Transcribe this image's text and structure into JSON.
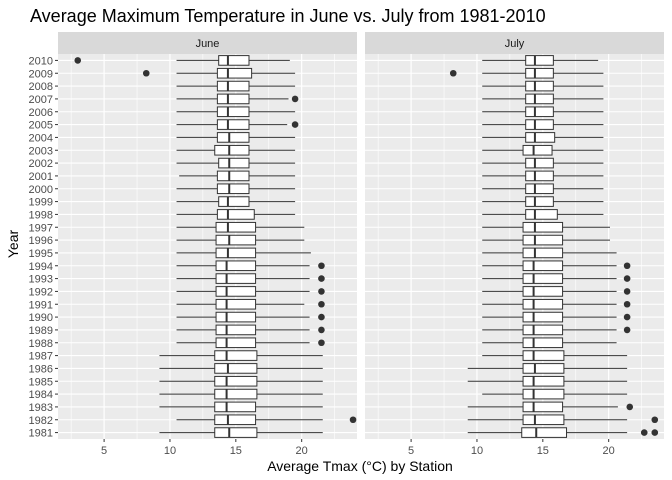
{
  "chart_data": {
    "type": "boxplot",
    "orientation": "horizontal",
    "title": "Average Maximum Temperature in June vs. July from 1981-2010",
    "xlabel": "Average Tmax (°C) by Station",
    "ylabel": "Year",
    "xlim": [
      1.5,
      24.2
    ],
    "x_ticks": [
      5,
      10,
      15,
      20
    ],
    "categories": [
      "1981",
      "1982",
      "1983",
      "1984",
      "1985",
      "1986",
      "1987",
      "1988",
      "1989",
      "1990",
      "1991",
      "1992",
      "1993",
      "1994",
      "1995",
      "1996",
      "1997",
      "1998",
      "1999",
      "2000",
      "2001",
      "2002",
      "2003",
      "2004",
      "2005",
      "2006",
      "2007",
      "2008",
      "2009",
      "2010"
    ],
    "grid": true,
    "legend": "none",
    "colors": {
      "panel_bg": "#EBEBEB",
      "strip_bg": "#D9D9D9",
      "grid": "#FFFFFF",
      "box_fill": "#FFFFFF",
      "box_line": "#333333",
      "point": "#333333"
    },
    "facets": [
      {
        "label": "June",
        "boxes": [
          {
            "year": "1981",
            "min": 9.2,
            "q1": 13.4,
            "median": 14.5,
            "q3": 16.6,
            "max": 21.6,
            "outliers": []
          },
          {
            "year": "1982",
            "min": 10.5,
            "q1": 13.4,
            "median": 14.4,
            "q3": 16.5,
            "max": 21.6,
            "outliers": [
              23.9
            ]
          },
          {
            "year": "1983",
            "min": 9.2,
            "q1": 13.4,
            "median": 14.3,
            "q3": 16.5,
            "max": 21.6,
            "outliers": []
          },
          {
            "year": "1984",
            "min": 9.2,
            "q1": 13.4,
            "median": 14.3,
            "q3": 16.6,
            "max": 21.6,
            "outliers": []
          },
          {
            "year": "1985",
            "min": 9.2,
            "q1": 13.4,
            "median": 14.3,
            "q3": 16.6,
            "max": 21.6,
            "outliers": []
          },
          {
            "year": "1986",
            "min": 9.2,
            "q1": 13.4,
            "median": 14.4,
            "q3": 16.6,
            "max": 21.6,
            "outliers": []
          },
          {
            "year": "1987",
            "min": 9.2,
            "q1": 13.4,
            "median": 14.3,
            "q3": 16.6,
            "max": 21.6,
            "outliers": []
          },
          {
            "year": "1988",
            "min": 10.5,
            "q1": 13.5,
            "median": 14.3,
            "q3": 16.5,
            "max": 20.6,
            "outliers": [
              21.5
            ]
          },
          {
            "year": "1989",
            "min": 10.5,
            "q1": 13.5,
            "median": 14.3,
            "q3": 16.5,
            "max": 20.6,
            "outliers": [
              21.5
            ]
          },
          {
            "year": "1990",
            "min": 10.5,
            "q1": 13.5,
            "median": 14.3,
            "q3": 16.5,
            "max": 20.6,
            "outliers": [
              21.5
            ]
          },
          {
            "year": "1991",
            "min": 10.5,
            "q1": 13.5,
            "median": 14.3,
            "q3": 16.5,
            "max": 20.2,
            "outliers": [
              21.5
            ]
          },
          {
            "year": "1992",
            "min": 10.5,
            "q1": 13.5,
            "median": 14.3,
            "q3": 16.5,
            "max": 20.6,
            "outliers": [
              21.5
            ]
          },
          {
            "year": "1993",
            "min": 10.5,
            "q1": 13.5,
            "median": 14.3,
            "q3": 16.5,
            "max": 20.6,
            "outliers": [
              21.5
            ]
          },
          {
            "year": "1994",
            "min": 10.5,
            "q1": 13.5,
            "median": 14.3,
            "q3": 16.5,
            "max": 20.6,
            "outliers": [
              21.5
            ]
          },
          {
            "year": "1995",
            "min": 10.5,
            "q1": 13.5,
            "median": 14.4,
            "q3": 16.5,
            "max": 20.7,
            "outliers": []
          },
          {
            "year": "1996",
            "min": 10.5,
            "q1": 13.5,
            "median": 14.5,
            "q3": 16.5,
            "max": 20.2,
            "outliers": []
          },
          {
            "year": "1997",
            "min": 10.5,
            "q1": 13.5,
            "median": 14.4,
            "q3": 16.5,
            "max": 20.2,
            "outliers": []
          },
          {
            "year": "1998",
            "min": 10.5,
            "q1": 13.6,
            "median": 14.4,
            "q3": 16.4,
            "max": 19.5,
            "outliers": []
          },
          {
            "year": "1999",
            "min": 10.5,
            "q1": 13.7,
            "median": 14.4,
            "q3": 16.0,
            "max": 19.5,
            "outliers": []
          },
          {
            "year": "2000",
            "min": 10.5,
            "q1": 13.6,
            "median": 14.5,
            "q3": 16.0,
            "max": 19.5,
            "outliers": []
          },
          {
            "year": "2001",
            "min": 10.7,
            "q1": 13.6,
            "median": 14.5,
            "q3": 16.0,
            "max": 19.5,
            "outliers": []
          },
          {
            "year": "2002",
            "min": 10.5,
            "q1": 13.7,
            "median": 14.5,
            "q3": 16.0,
            "max": 19.5,
            "outliers": []
          },
          {
            "year": "2003",
            "min": 10.5,
            "q1": 13.4,
            "median": 14.5,
            "q3": 16.0,
            "max": 19.5,
            "outliers": []
          },
          {
            "year": "2004",
            "min": 10.5,
            "q1": 13.6,
            "median": 14.5,
            "q3": 16.0,
            "max": 19.5,
            "outliers": []
          },
          {
            "year": "2005",
            "min": 10.5,
            "q1": 13.6,
            "median": 14.4,
            "q3": 16.0,
            "max": 18.9,
            "outliers": [
              19.5
            ]
          },
          {
            "year": "2006",
            "min": 10.5,
            "q1": 13.6,
            "median": 14.4,
            "q3": 16.0,
            "max": 19.5,
            "outliers": []
          },
          {
            "year": "2007",
            "min": 10.5,
            "q1": 13.6,
            "median": 14.4,
            "q3": 16.0,
            "max": 19.0,
            "outliers": [
              19.5
            ]
          },
          {
            "year": "2008",
            "min": 10.5,
            "q1": 13.6,
            "median": 14.4,
            "q3": 16.0,
            "max": 19.5,
            "outliers": []
          },
          {
            "year": "2009",
            "min": 10.5,
            "q1": 13.6,
            "median": 14.4,
            "q3": 16.2,
            "max": 19.5,
            "outliers": [
              8.2
            ]
          },
          {
            "year": "2010",
            "min": 10.5,
            "q1": 13.7,
            "median": 14.4,
            "q3": 16.0,
            "max": 19.1,
            "outliers": [
              3.0
            ]
          }
        ]
      },
      {
        "label": "July",
        "boxes": [
          {
            "year": "1981",
            "min": 9.3,
            "q1": 13.4,
            "median": 14.5,
            "q3": 16.8,
            "max": 21.4,
            "outliers": [
              22.7,
              23.5
            ]
          },
          {
            "year": "1982",
            "min": 9.3,
            "q1": 13.5,
            "median": 14.4,
            "q3": 16.6,
            "max": 21.4,
            "outliers": [
              23.5
            ]
          },
          {
            "year": "1983",
            "min": 9.3,
            "q1": 13.5,
            "median": 14.3,
            "q3": 16.5,
            "max": 20.7,
            "outliers": [
              21.6
            ]
          },
          {
            "year": "1984",
            "min": 10.4,
            "q1": 13.5,
            "median": 14.3,
            "q3": 16.6,
            "max": 21.4,
            "outliers": []
          },
          {
            "year": "1985",
            "min": 9.3,
            "q1": 13.5,
            "median": 14.3,
            "q3": 16.6,
            "max": 21.4,
            "outliers": []
          },
          {
            "year": "1986",
            "min": 9.3,
            "q1": 13.5,
            "median": 14.4,
            "q3": 16.6,
            "max": 21.4,
            "outliers": []
          },
          {
            "year": "1987",
            "min": 10.4,
            "q1": 13.5,
            "median": 14.3,
            "q3": 16.6,
            "max": 21.4,
            "outliers": []
          },
          {
            "year": "1988",
            "min": 10.4,
            "q1": 13.5,
            "median": 14.3,
            "q3": 16.5,
            "max": 20.6,
            "outliers": []
          },
          {
            "year": "1989",
            "min": 10.4,
            "q1": 13.5,
            "median": 14.3,
            "q3": 16.5,
            "max": 20.6,
            "outliers": [
              21.4
            ]
          },
          {
            "year": "1990",
            "min": 10.4,
            "q1": 13.5,
            "median": 14.3,
            "q3": 16.5,
            "max": 20.6,
            "outliers": [
              21.4
            ]
          },
          {
            "year": "1991",
            "min": 10.4,
            "q1": 13.5,
            "median": 14.3,
            "q3": 16.5,
            "max": 20.6,
            "outliers": [
              21.4
            ]
          },
          {
            "year": "1992",
            "min": 10.4,
            "q1": 13.5,
            "median": 14.3,
            "q3": 16.5,
            "max": 20.6,
            "outliers": [
              21.4
            ]
          },
          {
            "year": "1993",
            "min": 10.4,
            "q1": 13.5,
            "median": 14.3,
            "q3": 16.5,
            "max": 20.6,
            "outliers": [
              21.4
            ]
          },
          {
            "year": "1994",
            "min": 10.4,
            "q1": 13.5,
            "median": 14.3,
            "q3": 16.5,
            "max": 20.6,
            "outliers": [
              21.4
            ]
          },
          {
            "year": "1995",
            "min": 10.4,
            "q1": 13.5,
            "median": 14.4,
            "q3": 16.5,
            "max": 20.6,
            "outliers": []
          },
          {
            "year": "1996",
            "min": 10.4,
            "q1": 13.5,
            "median": 14.4,
            "q3": 16.5,
            "max": 20.1,
            "outliers": []
          },
          {
            "year": "1997",
            "min": 10.4,
            "q1": 13.5,
            "median": 14.4,
            "q3": 16.5,
            "max": 20.1,
            "outliers": []
          },
          {
            "year": "1998",
            "min": 10.4,
            "q1": 13.7,
            "median": 14.4,
            "q3": 16.1,
            "max": 19.6,
            "outliers": []
          },
          {
            "year": "1999",
            "min": 10.4,
            "q1": 13.7,
            "median": 14.4,
            "q3": 15.8,
            "max": 19.6,
            "outliers": []
          },
          {
            "year": "2000",
            "min": 10.4,
            "q1": 13.7,
            "median": 14.4,
            "q3": 15.8,
            "max": 19.6,
            "outliers": []
          },
          {
            "year": "2001",
            "min": 10.4,
            "q1": 13.7,
            "median": 14.4,
            "q3": 15.8,
            "max": 19.6,
            "outliers": []
          },
          {
            "year": "2002",
            "min": 10.4,
            "q1": 13.7,
            "median": 14.4,
            "q3": 15.8,
            "max": 19.6,
            "outliers": []
          },
          {
            "year": "2003",
            "min": 10.4,
            "q1": 13.5,
            "median": 14.3,
            "q3": 15.7,
            "max": 19.6,
            "outliers": []
          },
          {
            "year": "2004",
            "min": 10.4,
            "q1": 13.7,
            "median": 14.4,
            "q3": 15.9,
            "max": 19.6,
            "outliers": []
          },
          {
            "year": "2005",
            "min": 10.4,
            "q1": 13.7,
            "median": 14.4,
            "q3": 15.8,
            "max": 19.6,
            "outliers": []
          },
          {
            "year": "2006",
            "min": 10.4,
            "q1": 13.7,
            "median": 14.4,
            "q3": 15.8,
            "max": 19.6,
            "outliers": []
          },
          {
            "year": "2007",
            "min": 10.4,
            "q1": 13.7,
            "median": 14.4,
            "q3": 15.8,
            "max": 19.6,
            "outliers": []
          },
          {
            "year": "2008",
            "min": 10.4,
            "q1": 13.7,
            "median": 14.4,
            "q3": 15.8,
            "max": 19.6,
            "outliers": []
          },
          {
            "year": "2009",
            "min": 10.4,
            "q1": 13.7,
            "median": 14.4,
            "q3": 15.8,
            "max": 19.6,
            "outliers": [
              8.2
            ]
          },
          {
            "year": "2010",
            "min": 10.4,
            "q1": 13.7,
            "median": 14.4,
            "q3": 15.8,
            "max": 19.2,
            "outliers": []
          }
        ]
      }
    ]
  }
}
